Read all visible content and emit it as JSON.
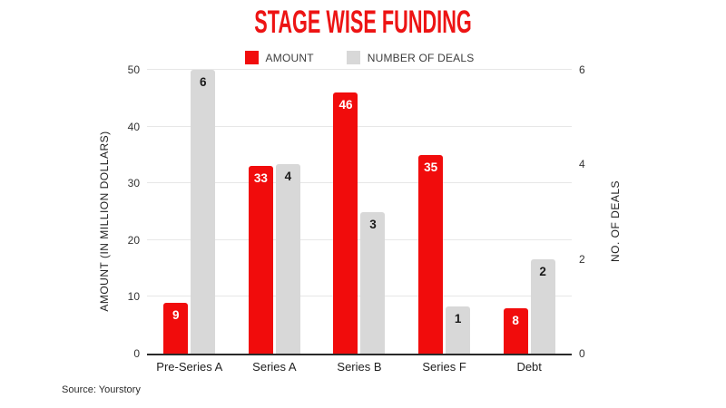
{
  "title": "STAGE WISE FUNDING",
  "source": "Source: Yourstory",
  "accent_color": "#ed1414",
  "chart_data": {
    "type": "bar",
    "title": "STAGE WISE FUNDING",
    "categories": [
      "Pre-Series A",
      "Series A",
      "Series B",
      "Series F",
      "Debt"
    ],
    "series": [
      {
        "name": "AMOUNT",
        "axis": "left",
        "color": "#f10c0c",
        "label_color": "#ffffff",
        "values": [
          9,
          33,
          46,
          35,
          8
        ]
      },
      {
        "name": "NUMBER OF DEALS",
        "axis": "right",
        "color": "#d8d8d8",
        "label_color": "#1a1a1a",
        "values": [
          6,
          4,
          3,
          1,
          2
        ]
      }
    ],
    "left_axis": {
      "label": "AMOUNT (IN MILLION DOLLARS)",
      "min": 0,
      "max": 50,
      "ticks": [
        0,
        10,
        20,
        30,
        40,
        50
      ]
    },
    "right_axis": {
      "label": "NO. OF DEALS",
      "min": 0,
      "max": 6,
      "ticks": [
        0,
        2,
        4,
        6
      ]
    },
    "legend_position": "top",
    "grid": true,
    "data_labels": true
  }
}
